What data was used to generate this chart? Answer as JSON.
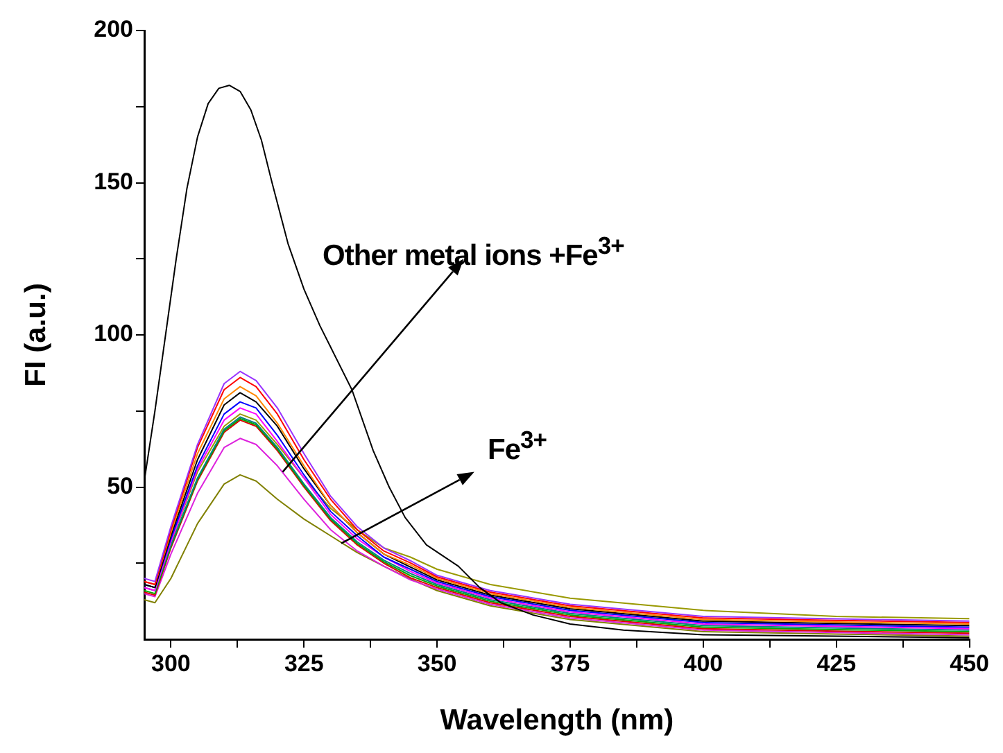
{
  "chart_data": {
    "type": "line",
    "xlabel": "Wavelength (nm)",
    "ylabel": "FI (a.u.)",
    "x": [
      295,
      297,
      300,
      305,
      310,
      313,
      316,
      320,
      325,
      330,
      335,
      340,
      345,
      350,
      360,
      375,
      400,
      425,
      450
    ],
    "xlim": [
      295,
      450
    ],
    "ylim": [
      0,
      200
    ],
    "xticks": [
      300,
      {
        "value": 312.5,
        "label": null
      },
      325,
      {
        "value": 337.5,
        "label": null
      },
      350,
      {
        "value": 362.5,
        "label": null
      },
      375,
      {
        "value": 387.5,
        "label": null
      },
      400,
      {
        "value": 412.5,
        "label": null
      },
      425,
      {
        "value": 437.5,
        "label": null
      },
      450
    ],
    "yticks": [
      {
        "value": 25,
        "label": null
      },
      50,
      {
        "value": 75,
        "label": null
      },
      100,
      {
        "value": 125,
        "label": null
      },
      150,
      {
        "value": 175,
        "label": null
      },
      200
    ],
    "marker": "none",
    "annotations": [
      {
        "text": "Other metal ions +Fe$^{3+}$",
        "x": 321,
        "y": 55
      },
      {
        "text": "Fe$^{3+}$",
        "x": 332,
        "y": 31.5
      }
    ],
    "series": [
      {
        "color": "#000000",
        "x": [
          295,
          297,
          299,
          301,
          303,
          305,
          307,
          309,
          311,
          313,
          315,
          317,
          319,
          322,
          325,
          328,
          330,
          334,
          338,
          341,
          344,
          348,
          354,
          358,
          362,
          368,
          375,
          385,
          400,
          425,
          450
        ],
        "values": [
          52,
          75,
          100,
          125,
          148,
          165,
          176,
          181,
          182,
          180,
          174,
          164,
          150,
          130,
          115,
          103,
          96,
          82,
          62,
          50,
          40,
          31,
          24,
          17,
          12,
          8,
          5,
          3,
          1.5,
          1,
          0.5
        ]
      },
      {
        "color": "#9933ff",
        "values": [
          20,
          19,
          37,
          64,
          84,
          88,
          85,
          76,
          61,
          47,
          37,
          30,
          25.8,
          21,
          16,
          11.5,
          7.5,
          6.7,
          6
        ]
      },
      {
        "color": "#ff0000",
        "values": [
          19,
          18,
          36,
          63,
          82,
          86,
          83,
          74,
          59,
          46,
          36,
          29,
          25.1,
          20.5,
          15.5,
          11,
          7,
          6.2,
          5.5
        ]
      },
      {
        "color": "#ff8800",
        "values": [
          19,
          18,
          35,
          61,
          79,
          83,
          80,
          71,
          57,
          44,
          35,
          28,
          24.4,
          20,
          15,
          10.5,
          6.5,
          5.7,
          5
        ]
      },
      {
        "color": "#000000",
        "values": [
          18,
          17,
          34,
          59,
          77,
          81,
          78,
          70,
          56,
          44,
          35,
          28,
          23.7,
          19.5,
          14.5,
          10,
          6,
          5.2,
          4.5
        ]
      },
      {
        "color": "#0000ff",
        "values": [
          18,
          17,
          33,
          57,
          74,
          78,
          76,
          67,
          54,
          42,
          34,
          27,
          23,
          19,
          14,
          9.5,
          5.5,
          4.7,
          4
        ]
      },
      {
        "color": "#ff00ff",
        "values": [
          17,
          16,
          32,
          56,
          72,
          76,
          74,
          65,
          53,
          41,
          33,
          27,
          22.3,
          18.5,
          13.5,
          9,
          5,
          4.2,
          3.5
        ]
      },
      {
        "color": "#999900",
        "values": [
          18,
          17,
          32,
          55,
          70,
          74,
          72,
          64,
          53,
          43,
          36,
          30,
          27,
          23,
          18,
          13.5,
          9.5,
          7.5,
          6.8
        ]
      },
      {
        "color": "#008080",
        "values": [
          17,
          16,
          31,
          53,
          69,
          73,
          71,
          63,
          51,
          40,
          32,
          26,
          21.6,
          18,
          13,
          8.5,
          4.5,
          3.7,
          3
        ]
      },
      {
        "color": "#00aa00",
        "values": [
          16,
          15,
          30.5,
          52.5,
          68.5,
          72.5,
          70.5,
          62.5,
          50.5,
          39.5,
          31.5,
          25.5,
          20.9,
          17.5,
          12.5,
          8,
          4,
          3.2,
          2.5
        ]
      },
      {
        "color": "#dd0000",
        "values": [
          15.5,
          14.5,
          30,
          52,
          68,
          72,
          70,
          62,
          50,
          39,
          31,
          25,
          20.2,
          17,
          12,
          7.5,
          3.5,
          2.7,
          2
        ]
      },
      {
        "color": "#dd22dd",
        "values": [
          15,
          14,
          28,
          48,
          63,
          66,
          64,
          57,
          46,
          36,
          29,
          24,
          19.5,
          16.5,
          11.5,
          7,
          3,
          2.2,
          1.5
        ]
      },
      {
        "color": "#808000",
        "values": [
          13,
          12,
          20,
          38,
          51,
          54,
          52,
          46,
          39.5,
          34,
          28.5,
          24,
          19.8,
          16,
          11,
          6.5,
          2.5,
          1.7,
          1
        ]
      }
    ]
  }
}
